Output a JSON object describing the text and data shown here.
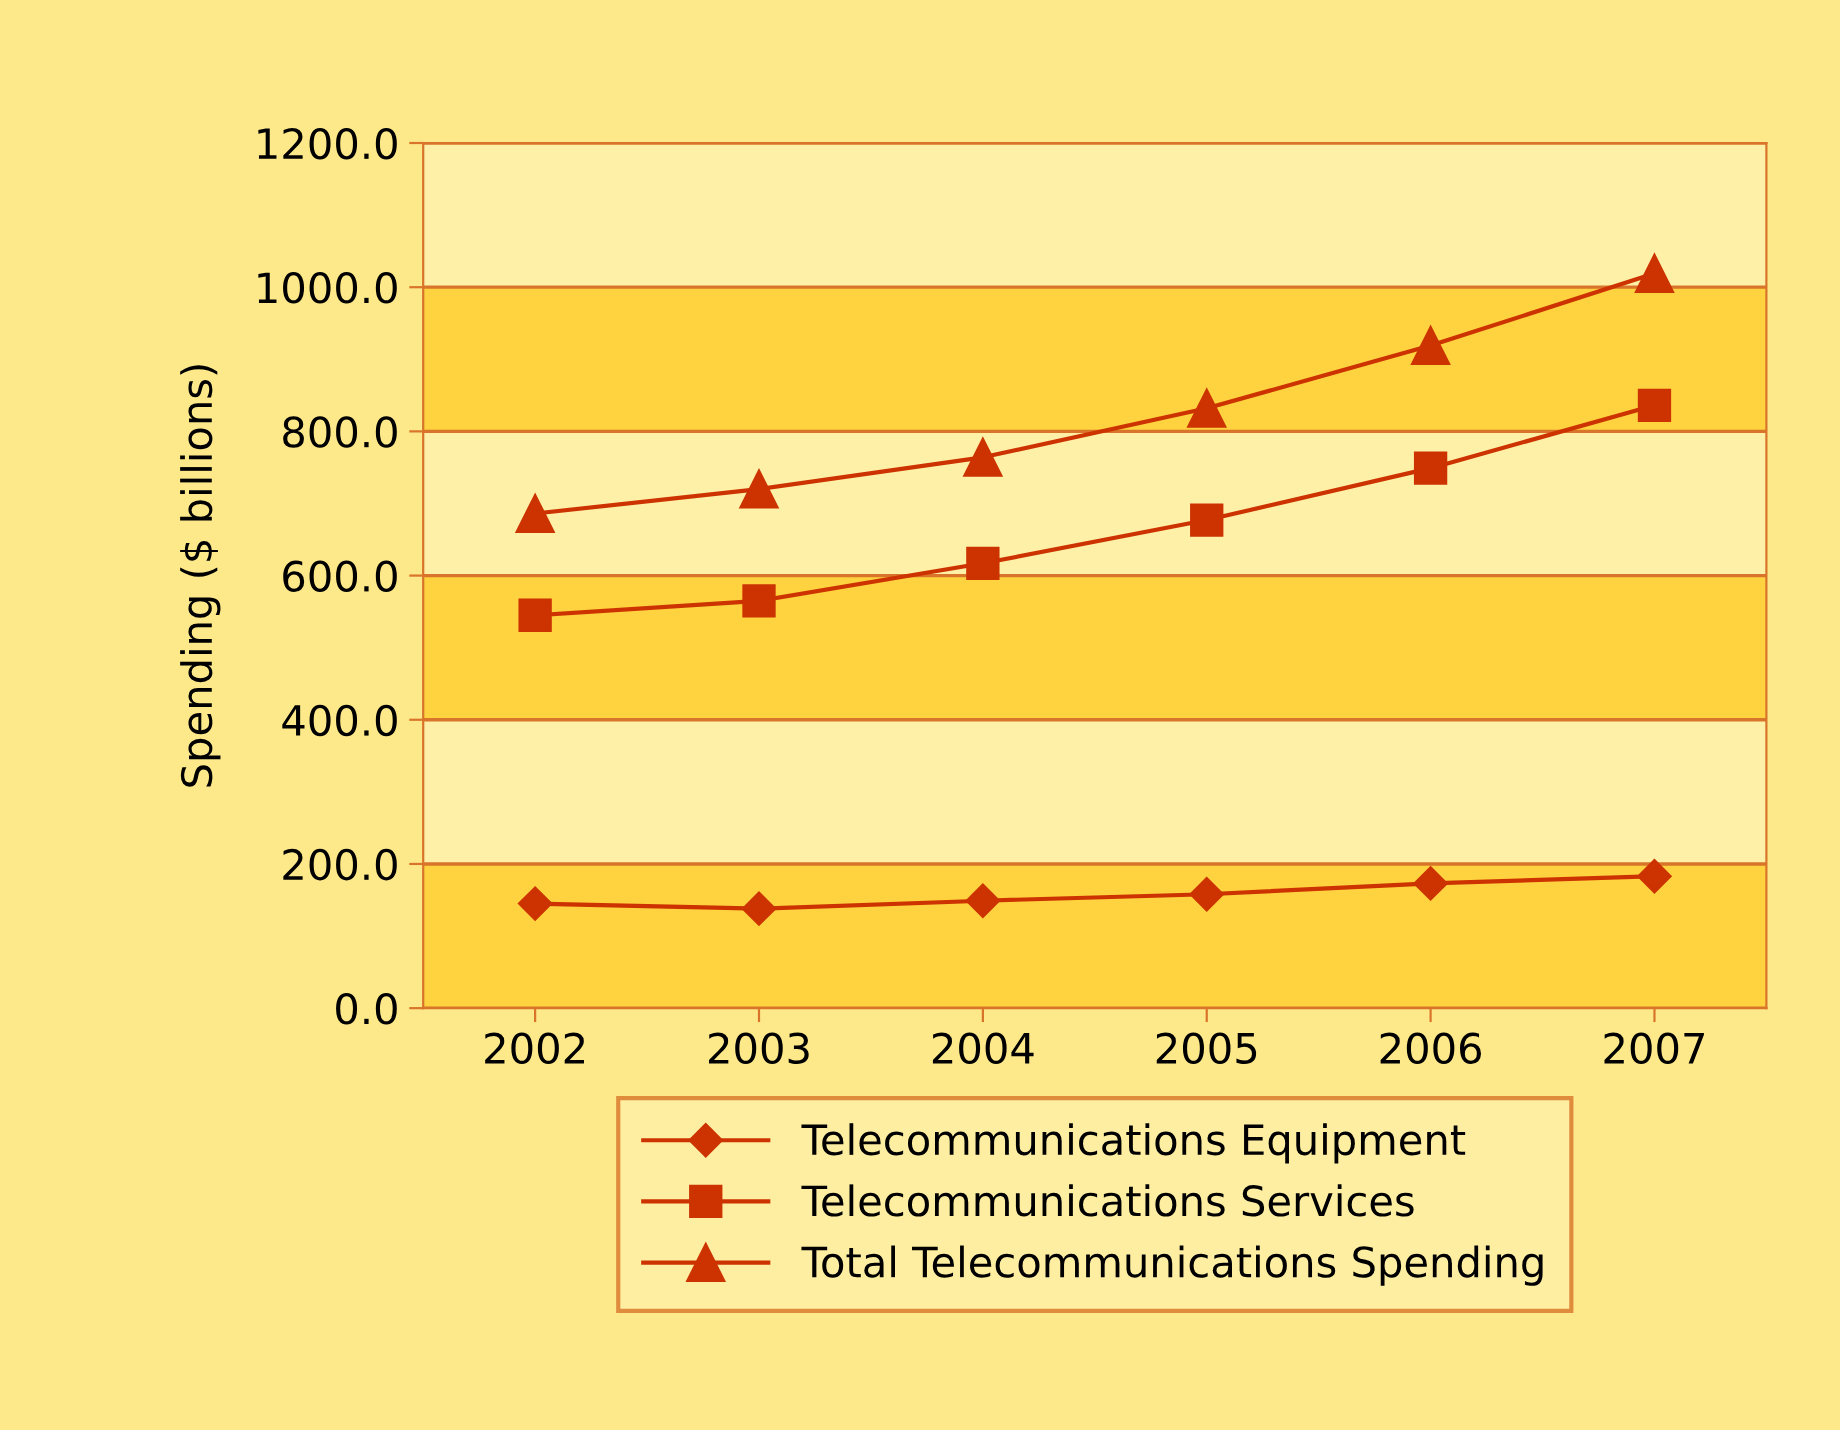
{
  "chart_data": {
    "type": "line",
    "ylabel": "Spending ($ billions)",
    "categories": [
      "2002",
      "2003",
      "2004",
      "2005",
      "2006",
      "2007"
    ],
    "series": [
      {
        "name": "Telecommunications Equipment",
        "color": "#cc3300",
        "marker": "diamond",
        "values": [
          145,
          138,
          149,
          158,
          173,
          183
        ]
      },
      {
        "name": "Telecommunications Services",
        "color": "#cc3300",
        "marker": "square",
        "values": [
          545,
          565,
          617,
          677,
          749,
          836
        ]
      },
      {
        "name": "Total Telecommunications Spending",
        "color": "#cc3300",
        "marker": "triangle",
        "values": [
          686,
          720,
          764,
          832,
          919,
          1019
        ]
      }
    ],
    "ylim": [
      0,
      1200
    ],
    "yticks": [
      {
        "value": 0,
        "label": "0.0"
      },
      {
        "value": 200,
        "label": "200.0"
      },
      {
        "value": 400,
        "label": "400.0"
      },
      {
        "value": 600,
        "label": "600.0"
      },
      {
        "value": 800,
        "label": "800.0"
      },
      {
        "value": 1000,
        "label": "1000.0"
      },
      {
        "value": 1200,
        "label": "1200.0"
      }
    ],
    "grid": "y",
    "bands": [
      {
        "axis": "y",
        "from": 0,
        "to": 200,
        "color": "#ffd23f"
      },
      {
        "axis": "y",
        "from": 400,
        "to": 600,
        "color": "#ffd23f"
      },
      {
        "axis": "y",
        "from": 800,
        "to": 1000,
        "color": "#ffd23f"
      }
    ],
    "legend": "bottom"
  }
}
